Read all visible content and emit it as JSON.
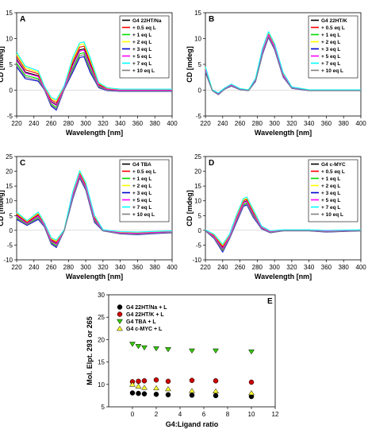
{
  "figure": {
    "panels": [
      {
        "id": "A",
        "label": "A",
        "type": "line",
        "xlabel": "Wavelength [nm]",
        "ylabel": "CD [mdeg]",
        "xlim": [
          220,
          400
        ],
        "ylim": [
          -5,
          15
        ],
        "xticks": [
          220,
          240,
          260,
          280,
          300,
          320,
          340,
          360,
          380,
          400
        ],
        "yticks": [
          -5,
          0,
          5,
          10,
          15
        ],
        "legend_position": "top-right",
        "legend": [
          "G4 22HT/Na",
          "+ 0.5 eq L",
          "+ 1 eq L",
          "+ 2 eq L",
          "+ 3 eq L",
          "+ 5 eq L",
          "+ 7 eq L",
          "+ 10 eq L"
        ],
        "colors": [
          "#000000",
          "#ff0000",
          "#00dd00",
          "#ffff00",
          "#0000cc",
          "#ff00ff",
          "#00ffff",
          "#808080"
        ],
        "series_points": [
          [
            220,
            6
          ],
          [
            230,
            3.5
          ],
          [
            245,
            2.8
          ],
          [
            252,
            0.5
          ],
          [
            260,
            -2.2
          ],
          [
            266,
            -2.8
          ],
          [
            275,
            0.5
          ],
          [
            285,
            5
          ],
          [
            293,
            7.8
          ],
          [
            298,
            8
          ],
          [
            305,
            5
          ],
          [
            315,
            1
          ],
          [
            325,
            0.2
          ],
          [
            340,
            0
          ],
          [
            360,
            0
          ],
          [
            400,
            0
          ]
        ],
        "series_spread": 1.5
      },
      {
        "id": "B",
        "label": "B",
        "type": "line",
        "xlabel": "Wavelength [nm]",
        "ylabel": "CD [mdeg]",
        "xlim": [
          220,
          400
        ],
        "ylim": [
          -5,
          15
        ],
        "xticks": [
          220,
          240,
          260,
          280,
          300,
          320,
          340,
          360,
          380,
          400
        ],
        "yticks": [
          -5,
          0,
          5,
          10,
          15
        ],
        "legend_position": "top-right",
        "legend": [
          "G4 22HT/K",
          "+ 0.5 eq L",
          "+ 1 eq L",
          "+ 2 eq L",
          "+ 3 eq L",
          "+ 5 eq L",
          "+ 7 eq L",
          "+ 10 eq L"
        ],
        "colors": [
          "#000000",
          "#ff0000",
          "#00dd00",
          "#ffff00",
          "#0000cc",
          "#ff00ff",
          "#00ffff",
          "#808080"
        ],
        "series_points": [
          [
            220,
            4
          ],
          [
            228,
            0
          ],
          [
            235,
            -0.7
          ],
          [
            242,
            0.3
          ],
          [
            250,
            1
          ],
          [
            260,
            0.2
          ],
          [
            270,
            0
          ],
          [
            278,
            2
          ],
          [
            286,
            7.5
          ],
          [
            293,
            10.8
          ],
          [
            300,
            8.5
          ],
          [
            310,
            3
          ],
          [
            320,
            0.5
          ],
          [
            340,
            0
          ],
          [
            360,
            0
          ],
          [
            400,
            0
          ]
        ],
        "series_spread": 0.6
      },
      {
        "id": "C",
        "label": "C",
        "type": "line",
        "xlabel": "Wavelength [nm]",
        "ylabel": "CD [mdeg]",
        "xlim": [
          220,
          400
        ],
        "ylim": [
          -10,
          25
        ],
        "xticks": [
          220,
          240,
          260,
          280,
          300,
          320,
          340,
          360,
          380,
          400
        ],
        "yticks": [
          -10,
          -5,
          0,
          5,
          10,
          15,
          20,
          25
        ],
        "legend_position": "top-right",
        "legend": [
          "G4 TBA",
          "+ 0.5 eq L",
          "+ 1 eq L",
          "+ 2 eq L",
          "+ 3 eq L",
          "+ 5 eq L",
          "+ 7 eq L",
          "+ 10 eq L"
        ],
        "colors": [
          "#000000",
          "#ff0000",
          "#00dd00",
          "#ffff00",
          "#0000cc",
          "#ff00ff",
          "#00ffff",
          "#808080"
        ],
        "series_points": [
          [
            220,
            5
          ],
          [
            232,
            2.5
          ],
          [
            245,
            5
          ],
          [
            252,
            2
          ],
          [
            260,
            -3.5
          ],
          [
            266,
            -4.5
          ],
          [
            275,
            0
          ],
          [
            285,
            12
          ],
          [
            293,
            19
          ],
          [
            300,
            15
          ],
          [
            310,
            4
          ],
          [
            320,
            0
          ],
          [
            340,
            -0.8
          ],
          [
            360,
            -1
          ],
          [
            380,
            -0.7
          ],
          [
            400,
            -0.5
          ]
        ],
        "series_spread": 1.3
      },
      {
        "id": "D",
        "label": "D",
        "type": "line",
        "xlabel": "Wavelength [nm]",
        "ylabel": "CD [mdeg]",
        "xlim": [
          220,
          400
        ],
        "ylim": [
          -10,
          25
        ],
        "xticks": [
          220,
          240,
          260,
          280,
          300,
          320,
          340,
          360,
          380,
          400
        ],
        "yticks": [
          -10,
          -5,
          0,
          5,
          10,
          15,
          20,
          25
        ],
        "legend_position": "top-right",
        "legend": [
          "G4 c-MYC",
          "+ 0.5 eq L",
          "+ 1 eq L",
          "+ 2 eq L",
          "+ 3 eq L",
          "+ 5 eq L",
          "+ 7 eq L",
          "+ 10 eq L"
        ],
        "colors": [
          "#000000",
          "#ff0000",
          "#00dd00",
          "#ffff00",
          "#0000cc",
          "#ff00ff",
          "#00ffff",
          "#808080"
        ],
        "series_points": [
          [
            220,
            0
          ],
          [
            230,
            -2
          ],
          [
            240,
            -6
          ],
          [
            248,
            -2
          ],
          [
            256,
            4
          ],
          [
            264,
            9.5
          ],
          [
            268,
            10
          ],
          [
            275,
            6
          ],
          [
            285,
            1
          ],
          [
            295,
            -0.5
          ],
          [
            310,
            0
          ],
          [
            340,
            0
          ],
          [
            360,
            -0.3
          ],
          [
            400,
            0
          ]
        ],
        "series_spread": 1.4
      }
    ],
    "scatter": {
      "label": "E",
      "type": "scatter",
      "xlabel": "G4:Ligand ratio",
      "ylabel": "Mol. Elpt. 293 or 265",
      "xlim": [
        -2,
        12
      ],
      "ylim": [
        5,
        30
      ],
      "xticks": [
        0,
        2,
        4,
        6,
        8,
        10,
        12
      ],
      "yticks": [
        5,
        10,
        15,
        20,
        25,
        30
      ],
      "legend_position": "top-right",
      "x": [
        0,
        0.5,
        1,
        2,
        3,
        5,
        7,
        10
      ],
      "series": [
        {
          "name": "G4 22HT/Na + L",
          "marker": "circle",
          "color": "#000000",
          "values": [
            8.1,
            8.0,
            7.9,
            7.8,
            7.7,
            7.6,
            7.5,
            7.3
          ]
        },
        {
          "name": "G4 22HT/K + L",
          "marker": "circle",
          "color": "#cc0000",
          "values": [
            10.6,
            10.7,
            10.8,
            11.0,
            10.7,
            10.9,
            10.8,
            10.5
          ]
        },
        {
          "name": "G4 TBA + L",
          "marker": "triangle-down",
          "color": "#33cc00",
          "values": [
            19.0,
            18.5,
            18.2,
            18.0,
            17.8,
            17.5,
            17.5,
            17.3
          ]
        },
        {
          "name": "G4 c-MYC + L",
          "marker": "triangle-up",
          "color": "#ffff33",
          "values": [
            10.0,
            9.6,
            9.3,
            9.2,
            9.0,
            8.6,
            8.5,
            8.1
          ]
        }
      ]
    }
  }
}
